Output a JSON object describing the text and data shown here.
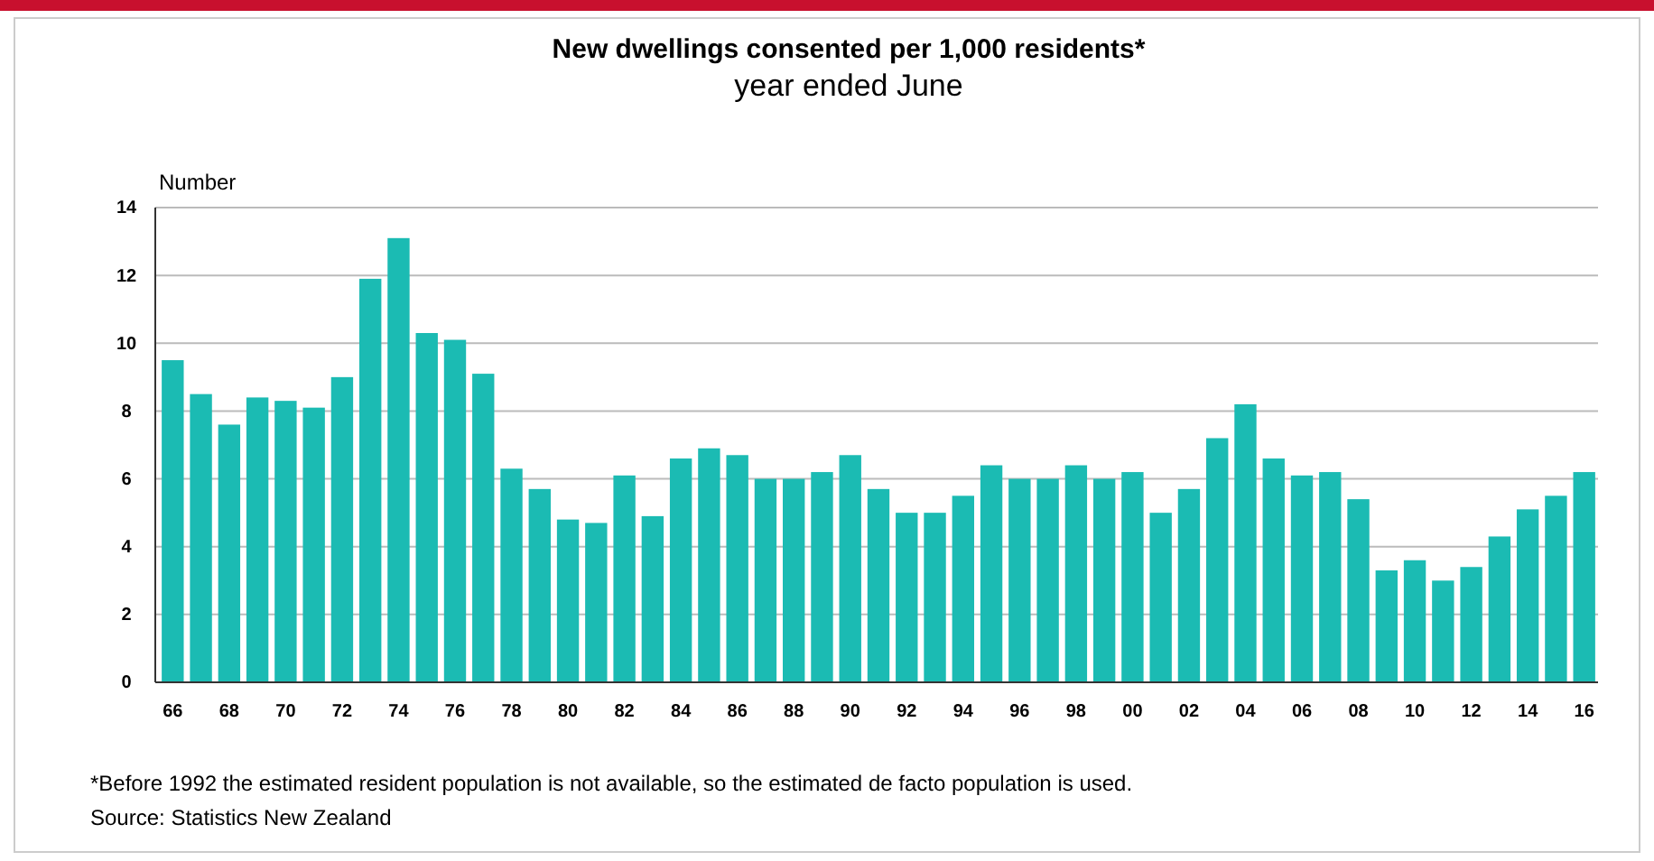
{
  "chart_data": {
    "type": "bar",
    "title": "New dwellings consented per 1,000 residents*",
    "subtitle": "year ended June",
    "ylabel": "Number",
    "categories": [
      "66",
      null,
      "68",
      null,
      "70",
      null,
      "72",
      null,
      "74",
      null,
      "76",
      null,
      "78",
      null,
      "80",
      null,
      "82",
      null,
      "84",
      null,
      "86",
      null,
      "88",
      null,
      "90",
      null,
      "92",
      null,
      "94",
      null,
      "96",
      null,
      "98",
      null,
      "00",
      null,
      "02",
      null,
      "04",
      null,
      "06",
      null,
      "08",
      null,
      "10",
      null,
      "12",
      null,
      "14",
      null,
      "16"
    ],
    "values": [
      9.5,
      8.5,
      7.6,
      8.4,
      8.3,
      8.1,
      9.0,
      11.9,
      13.1,
      10.3,
      10.1,
      9.1,
      6.3,
      5.7,
      4.8,
      4.7,
      6.1,
      4.9,
      6.6,
      6.9,
      6.7,
      6.0,
      6.0,
      6.2,
      6.7,
      5.7,
      5.0,
      5.0,
      5.5,
      6.4,
      6.0,
      6.0,
      6.4,
      6.0,
      6.2,
      5.0,
      5.7,
      7.2,
      8.2,
      6.6,
      6.1,
      6.2,
      5.4,
      3.3,
      3.6,
      3.0,
      3.4,
      4.3,
      5.1,
      5.5,
      6.2
    ],
    "color": "#1bbbb3",
    "ylim": [
      0,
      14
    ],
    "yticks": [
      0,
      2,
      4,
      6,
      8,
      10,
      12,
      14
    ],
    "grid": "y",
    "annotations": [
      "*Before 1992 the estimated resident population is not available, so the estimated de facto population is used.",
      "Source: Statistics New Zealand"
    ]
  }
}
